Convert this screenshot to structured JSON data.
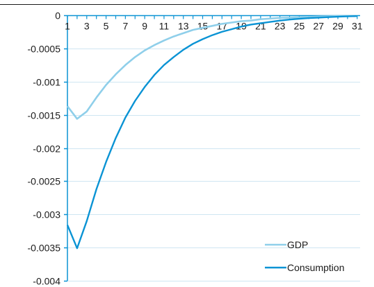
{
  "chart_data": {
    "type": "line",
    "title": "",
    "xlabel": "",
    "ylabel": "",
    "x": [
      1,
      2,
      3,
      4,
      5,
      6,
      7,
      8,
      9,
      10,
      11,
      12,
      13,
      14,
      15,
      16,
      17,
      18,
      19,
      20,
      21,
      22,
      23,
      24,
      25,
      26,
      27,
      28,
      29,
      30,
      31
    ],
    "x_tick_labels": [
      "1",
      "3",
      "5",
      "7",
      "9",
      "11",
      "13",
      "15",
      "17",
      "19",
      "21",
      "23",
      "25",
      "27",
      "29",
      "31"
    ],
    "y_tick_labels": [
      "0",
      "-0.0005",
      "-0.001",
      "-0.0015",
      "-0.002",
      "-0.0025",
      "-0.003",
      "-0.0035",
      "-0.004"
    ],
    "ylim": [
      -0.004,
      0
    ],
    "grid": true,
    "legend_position": "bottom-right",
    "series": [
      {
        "name": "GDP",
        "color": "#8fcfea",
        "values": [
          -0.00137,
          -0.00156,
          -0.00145,
          -0.00124,
          -0.00105,
          -0.00089,
          -0.00075,
          -0.00063,
          -0.00053,
          -0.00045,
          -0.00038,
          -0.00032,
          -0.00027,
          -0.00022,
          -0.00019,
          -0.00016,
          -0.00013,
          -0.00011,
          -9e-05,
          -8e-05,
          -6e-05,
          -5e-05,
          -4e-05,
          -3.5e-05,
          -3e-05,
          -2.5e-05,
          -2e-05,
          -1.6e-05,
          -1.3e-05,
          -1e-05,
          -8e-06
        ]
      },
      {
        "name": "Consumption",
        "color": "#0a93d4",
        "values": [
          -0.00316,
          -0.00351,
          -0.0031,
          -0.00262,
          -0.00221,
          -0.00185,
          -0.00154,
          -0.00129,
          -0.00108,
          -0.0009,
          -0.00075,
          -0.00063,
          -0.00052,
          -0.00043,
          -0.00036,
          -0.0003,
          -0.00025,
          -0.00021,
          -0.00017,
          -0.00014,
          -0.00012,
          -0.0001,
          -8e-05,
          -6.5e-05,
          -5.3e-05,
          -4.3e-05,
          -3.5e-05,
          -2.8e-05,
          -2.2e-05,
          -1.7e-05,
          -1.3e-05
        ]
      }
    ]
  }
}
